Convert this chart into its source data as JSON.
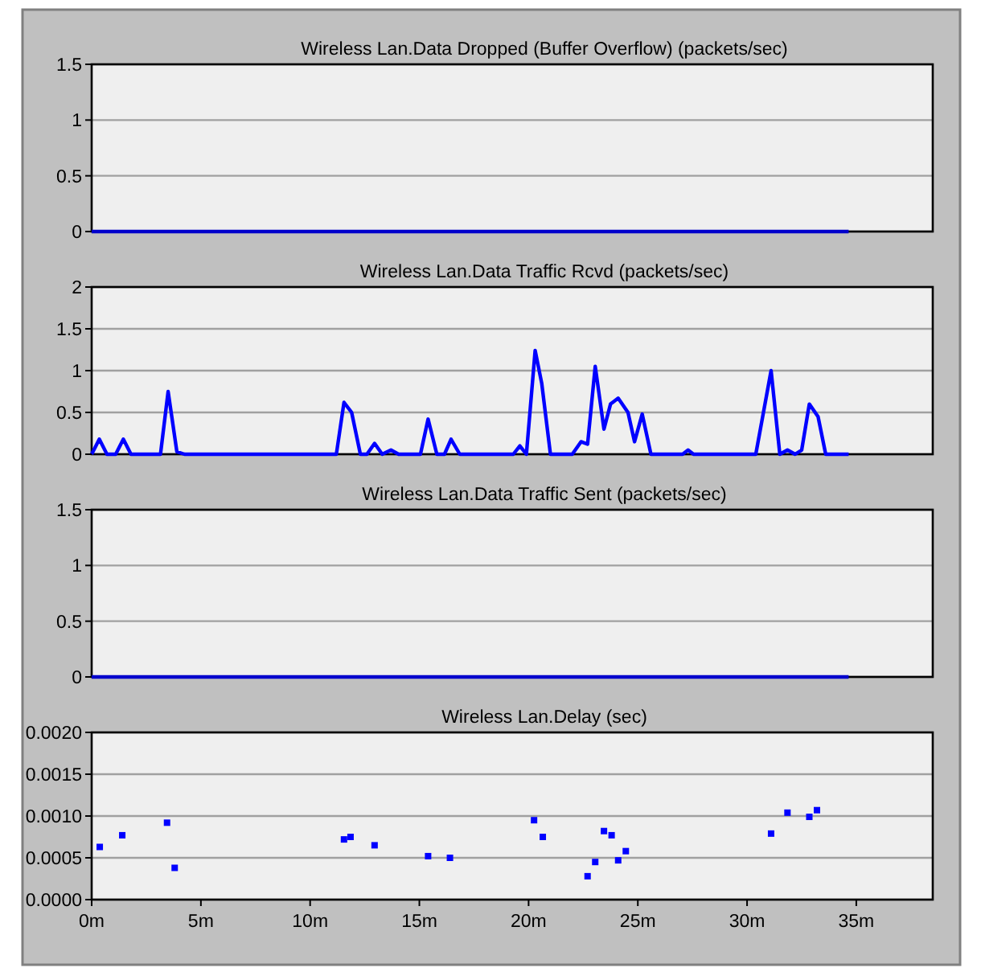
{
  "chart_data": [
    {
      "type": "line",
      "title": "Wireless Lan.Data Dropped (Buffer Overflow) (packets/sec)",
      "xlim": [
        0,
        38.5
      ],
      "ylim": [
        0,
        1.5
      ],
      "yticks": [
        0,
        0.5,
        1,
        1.5
      ],
      "grid": "y",
      "tick_labels": "y",
      "series": [
        {
          "color": "#0000cc",
          "x": [
            0,
            34.65
          ],
          "values": [
            0,
            0
          ]
        }
      ]
    },
    {
      "type": "line",
      "title": "Wireless Lan.Data Traffic Rcvd (packets/sec)",
      "xlim": [
        0,
        38.5
      ],
      "ylim": [
        0,
        2
      ],
      "yticks": [
        0,
        0.5,
        1,
        1.5,
        2
      ],
      "grid": "y",
      "tick_labels": "y",
      "series": [
        {
          "color": "#0000ff",
          "x": [
            0,
            0.35,
            0.7,
            1.1,
            1.45,
            1.8,
            3.15,
            3.5,
            3.9,
            4.25,
            11.2,
            11.55,
            11.9,
            12.3,
            12.6,
            12.95,
            13.3,
            13.7,
            14.05,
            15.05,
            15.4,
            15.8,
            16.15,
            16.45,
            16.85,
            19.3,
            19.6,
            19.9,
            20.3,
            20.6,
            21.0,
            22.0,
            22.4,
            22.7,
            23.05,
            23.45,
            23.75,
            24.1,
            24.55,
            24.85,
            25.2,
            25.6,
            27.05,
            27.3,
            27.55,
            30.4,
            31.1,
            31.5,
            31.85,
            32.2,
            32.5,
            32.85,
            33.25,
            33.6,
            34.65
          ],
          "values": [
            0,
            0.18,
            0,
            0,
            0.18,
            0,
            0,
            0.75,
            0.03,
            0,
            0,
            0.62,
            0.5,
            0,
            0,
            0.13,
            0,
            0.05,
            0,
            0,
            0.42,
            0,
            0,
            0.18,
            0,
            0,
            0.1,
            0,
            1.24,
            0.85,
            0,
            0,
            0.15,
            0.12,
            1.05,
            0.3,
            0.6,
            0.67,
            0.5,
            0.15,
            0.48,
            0,
            0,
            0.05,
            0,
            0,
            1.0,
            0,
            0.05,
            0,
            0.05,
            0.6,
            0.45,
            0,
            0
          ]
        }
      ]
    },
    {
      "type": "line",
      "title": "Wireless Lan.Data Traffic Sent (packets/sec)",
      "xlim": [
        0,
        38.5
      ],
      "ylim": [
        0,
        1.5
      ],
      "yticks": [
        0,
        0.5,
        1,
        1.5
      ],
      "grid": "y",
      "tick_labels": "y",
      "series": [
        {
          "color": "#0000cc",
          "x": [
            0,
            34.65
          ],
          "values": [
            0,
            0
          ]
        }
      ]
    },
    {
      "type": "scatter",
      "title": "Wireless Lan.Delay (sec)",
      "marker": "square",
      "xlim": [
        0,
        38.5
      ],
      "xticks": [
        {
          "value": 0,
          "label": "0m"
        },
        {
          "value": 5,
          "label": "5m"
        },
        {
          "value": 10,
          "label": "10m"
        },
        {
          "value": 15,
          "label": "15m"
        },
        {
          "value": 20,
          "label": "20m"
        },
        {
          "value": 25,
          "label": "25m"
        },
        {
          "value": 30,
          "label": "30m"
        },
        {
          "value": 35,
          "label": "35m"
        }
      ],
      "ylim": [
        0,
        0.002
      ],
      "yticks": [
        {
          "value": 0,
          "label": "0.0000"
        },
        {
          "value": 0.0005,
          "label": "0.0005"
        },
        {
          "value": 0.001,
          "label": "0.0010"
        },
        {
          "value": 0.0015,
          "label": "0.0015"
        },
        {
          "value": 0.002,
          "label": "0.0020"
        }
      ],
      "grid": "y",
      "series": [
        {
          "color": "#0000ff",
          "x": [
            0.37,
            1.4,
            3.45,
            3.8,
            11.55,
            11.85,
            12.95,
            15.4,
            16.4,
            20.25,
            20.65,
            22.7,
            23.05,
            23.45,
            23.8,
            24.1,
            24.45,
            31.1,
            31.85,
            32.85,
            33.2
          ],
          "values": [
            0.00063,
            0.00077,
            0.00092,
            0.00038,
            0.00072,
            0.00075,
            0.00065,
            0.00052,
            0.0005,
            0.00095,
            0.00075,
            0.00028,
            0.00045,
            0.00082,
            0.00077,
            0.00047,
            0.00058,
            0.00079,
            0.00104,
            0.00099,
            0.00107
          ]
        }
      ]
    }
  ]
}
